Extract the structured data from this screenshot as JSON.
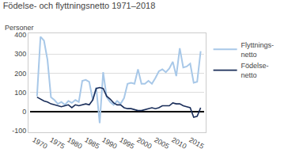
{
  "chart_data": {
    "type": "line",
    "title": "Födelse- och flyttningsnetto 1971–2018",
    "ylabel": "Personer",
    "x": [
      1971,
      1972,
      1973,
      1974,
      1975,
      1976,
      1977,
      1978,
      1979,
      1980,
      1981,
      1982,
      1983,
      1984,
      1985,
      1986,
      1987,
      1988,
      1989,
      1990,
      1991,
      1992,
      1993,
      1994,
      1995,
      1996,
      1997,
      1998,
      1999,
      2000,
      2001,
      2002,
      2003,
      2004,
      2005,
      2006,
      2007,
      2008,
      2009,
      2010,
      2011,
      2012,
      2013,
      2014,
      2015,
      2016,
      2017,
      2018
    ],
    "series": [
      {
        "name": "Flyttnings-\nnetto",
        "color": "#a8c8e8",
        "values": [
          80,
          390,
          370,
          270,
          75,
          60,
          40,
          50,
          35,
          55,
          45,
          60,
          50,
          160,
          165,
          155,
          60,
          125,
          -60,
          205,
          75,
          50,
          35,
          55,
          40,
          70,
          145,
          150,
          145,
          220,
          145,
          145,
          160,
          145,
          175,
          210,
          220,
          205,
          225,
          260,
          185,
          330,
          230,
          235,
          250,
          150,
          155,
          315
        ]
      },
      {
        "name": "Födelse-\nnetto",
        "color": "#1a2e5a",
        "values": [
          75,
          65,
          55,
          50,
          40,
          35,
          30,
          25,
          30,
          35,
          20,
          35,
          30,
          35,
          40,
          35,
          60,
          120,
          125,
          120,
          80,
          65,
          45,
          35,
          35,
          20,
          15,
          15,
          10,
          5,
          5,
          10,
          15,
          20,
          15,
          20,
          30,
          30,
          30,
          45,
          40,
          40,
          30,
          25,
          20,
          -30,
          -25,
          20
        ]
      }
    ],
    "xlim": [
      1969,
      2019
    ],
    "xticks": [
      1970,
      1975,
      1980,
      1985,
      1990,
      1995,
      2000,
      2005,
      2010,
      2015
    ],
    "ylim": [
      -100,
      400
    ],
    "yticks": [
      -100,
      0,
      100,
      200,
      300,
      400
    ],
    "grid": true,
    "legend": "right"
  }
}
